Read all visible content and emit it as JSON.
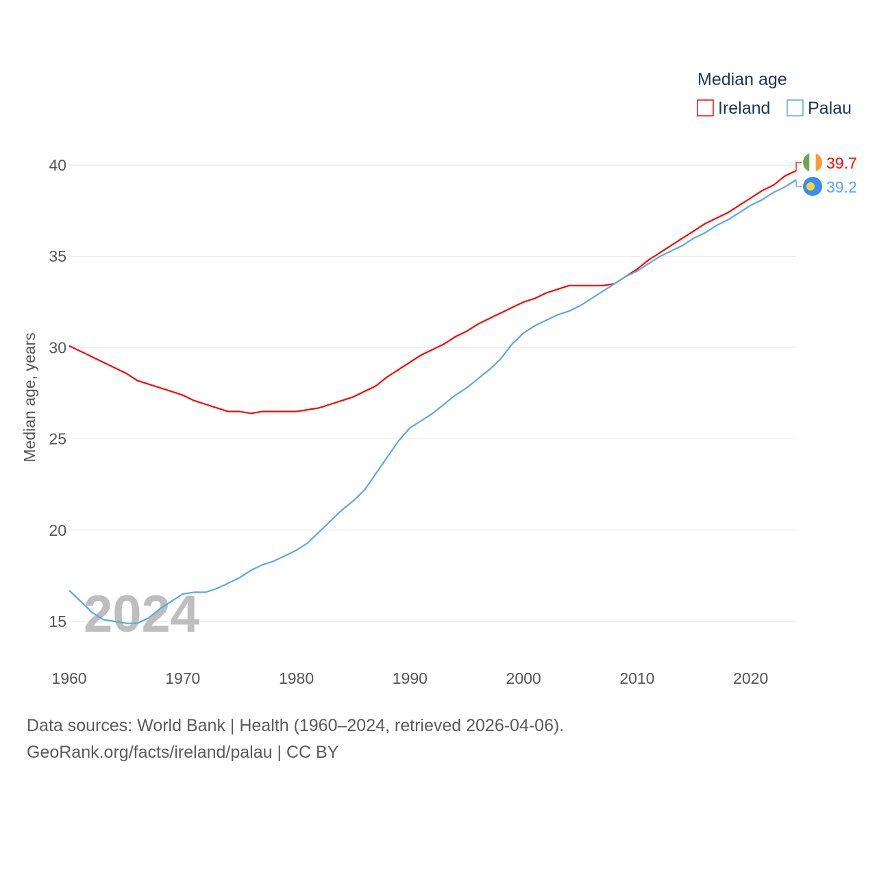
{
  "chart_data": {
    "type": "line",
    "title": "Median age",
    "ylabel": "Median age, years",
    "xlabel": "",
    "ylim": [
      13,
      42
    ],
    "xlim": [
      1960,
      2024
    ],
    "grid": true,
    "legend_position": "top-right",
    "year_watermark": "2024",
    "yticks": [
      15,
      20,
      25,
      30,
      35,
      40
    ],
    "xticks": [
      1960,
      1970,
      1980,
      1990,
      2000,
      2010,
      2020
    ],
    "x": [
      1960,
      1961,
      1962,
      1963,
      1964,
      1965,
      1966,
      1967,
      1968,
      1969,
      1970,
      1971,
      1972,
      1973,
      1974,
      1975,
      1976,
      1977,
      1978,
      1979,
      1980,
      1981,
      1982,
      1983,
      1984,
      1985,
      1986,
      1987,
      1988,
      1989,
      1990,
      1991,
      1992,
      1993,
      1994,
      1995,
      1996,
      1997,
      1998,
      1999,
      2000,
      2001,
      2002,
      2003,
      2004,
      2005,
      2006,
      2007,
      2008,
      2009,
      2010,
      2011,
      2012,
      2013,
      2014,
      2015,
      2016,
      2017,
      2018,
      2019,
      2020,
      2021,
      2022,
      2023,
      2024
    ],
    "series": [
      {
        "name": "Ireland",
        "color": "#ff0000",
        "end_label": "39.7",
        "values": [
          30.1,
          29.8,
          29.5,
          29.2,
          28.9,
          28.6,
          28.2,
          28.0,
          27.8,
          27.6,
          27.4,
          27.1,
          26.9,
          26.7,
          26.5,
          26.5,
          26.4,
          26.5,
          26.5,
          26.5,
          26.5,
          26.6,
          26.7,
          26.9,
          27.1,
          27.3,
          27.6,
          27.9,
          28.4,
          28.8,
          29.2,
          29.6,
          29.9,
          30.2,
          30.6,
          30.9,
          31.3,
          31.6,
          31.9,
          32.2,
          32.5,
          32.7,
          33.0,
          33.2,
          33.4,
          33.4,
          33.4,
          33.4,
          33.5,
          33.9,
          34.3,
          34.8,
          35.2,
          35.6,
          36.0,
          36.4,
          36.8,
          37.1,
          37.4,
          37.8,
          38.2,
          38.6,
          38.9,
          39.4,
          39.7
        ]
      },
      {
        "name": "Palau",
        "color": "#5ba6ee",
        "end_label": "39.2",
        "values": [
          16.7,
          16.1,
          15.5,
          15.1,
          15.0,
          14.9,
          14.9,
          15.2,
          15.7,
          16.1,
          16.5,
          16.6,
          16.6,
          16.8,
          17.1,
          17.4,
          17.8,
          18.1,
          18.3,
          18.6,
          18.9,
          19.3,
          19.9,
          20.5,
          21.1,
          21.6,
          22.2,
          23.1,
          24.0,
          24.9,
          25.6,
          26.0,
          26.4,
          26.9,
          27.4,
          27.8,
          28.3,
          28.8,
          29.4,
          30.2,
          30.8,
          31.2,
          31.5,
          31.8,
          32.0,
          32.3,
          32.7,
          33.1,
          33.5,
          33.9,
          34.2,
          34.6,
          35.0,
          35.3,
          35.6,
          36.0,
          36.3,
          36.7,
          37.0,
          37.4,
          37.8,
          38.1,
          38.5,
          38.8,
          39.2
        ]
      }
    ]
  },
  "footer": {
    "sources": "Data sources: World Bank | Health (1960–2024, retrieved 2026-04-06).",
    "credit": "GeoRank.org/facts/ireland/palau | CC BY"
  }
}
